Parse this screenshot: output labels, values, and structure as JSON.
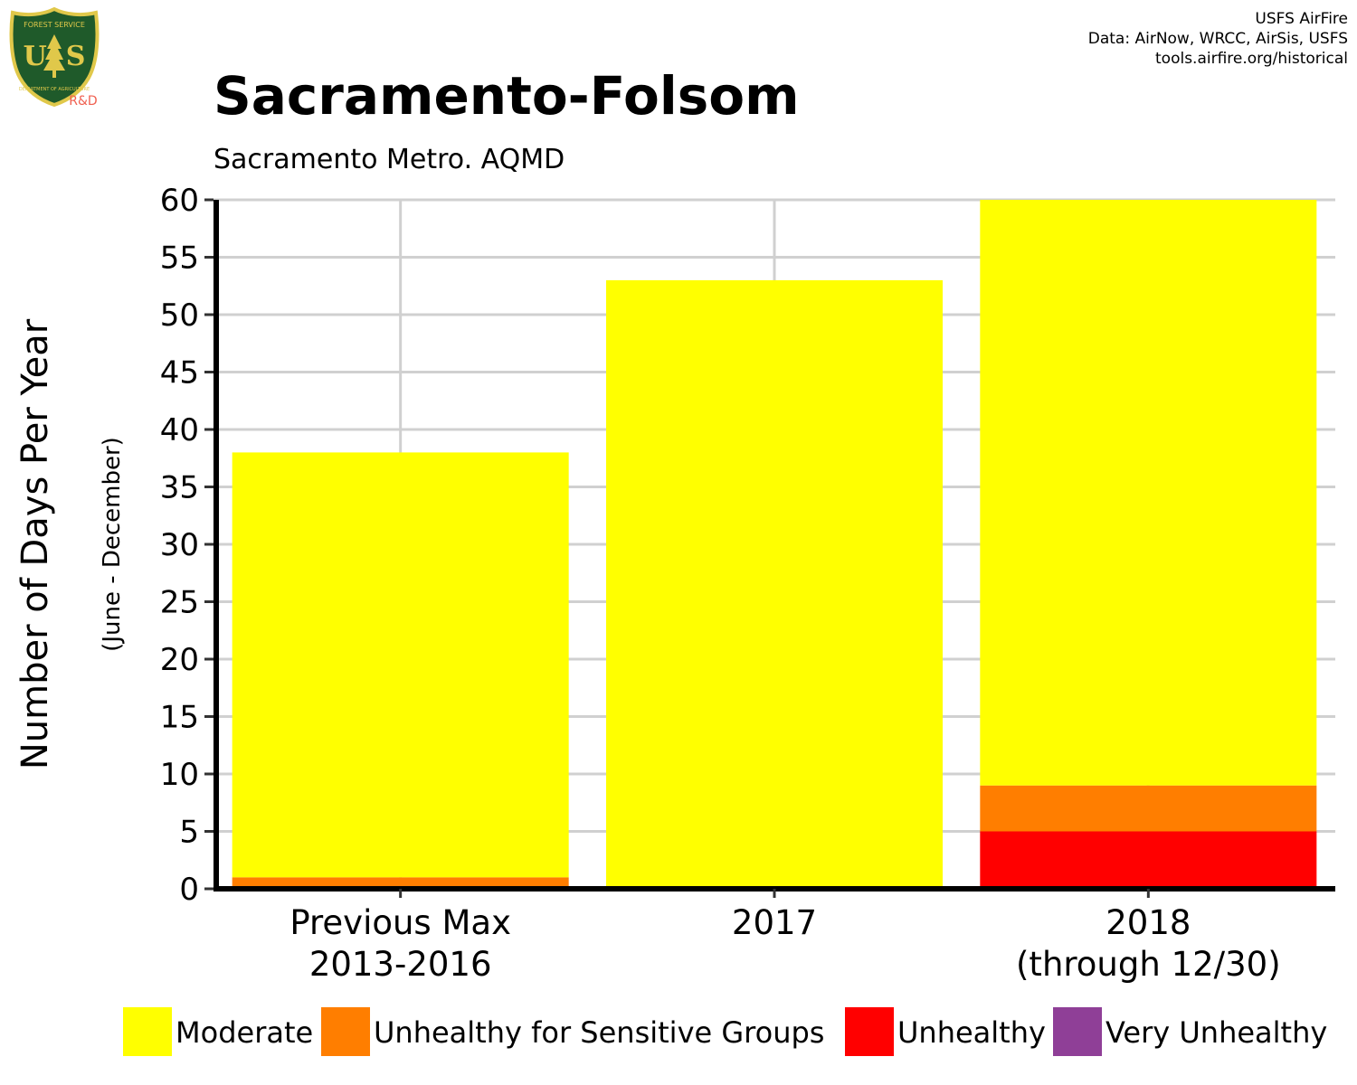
{
  "credits": {
    "line1": "USFS AirFire",
    "line2": "Data: AirNow, WRCC, AirSis, USFS",
    "line3": "tools.airfire.org/historical"
  },
  "logo": {
    "top_text": "FOREST SERVICE",
    "letters": "U  S",
    "bottom_text": "DEPARTMENT OF AGRICULTURE",
    "rd": "R&D",
    "colors": {
      "shield": "#1f5a2a",
      "border": "#e0c84a",
      "rd": "#f06050"
    }
  },
  "chart_data": {
    "type": "bar",
    "stacked": true,
    "title": "Sacramento-Folsom",
    "subtitle": "Sacramento Metro. AQMD",
    "ylabel": "Number of Days Per Year",
    "ylabel2": "(June - December)",
    "ylim": [
      0,
      60
    ],
    "yticks": [
      0,
      5,
      10,
      15,
      20,
      25,
      30,
      35,
      40,
      45,
      50,
      55,
      60
    ],
    "grid": true,
    "categories": [
      [
        "Previous Max",
        "2013-2016"
      ],
      [
        "2017"
      ],
      [
        "2018",
        "(through 12/30)"
      ]
    ],
    "series": [
      {
        "name": "Moderate",
        "color": "#FFFF00",
        "values": [
          37,
          53,
          51
        ]
      },
      {
        "name": "Unhealthy for Sensitive Groups",
        "color": "#FF7E00",
        "values": [
          1,
          0,
          4
        ]
      },
      {
        "name": "Unhealthy",
        "color": "#FF0000",
        "values": [
          0,
          0,
          5
        ]
      },
      {
        "name": "Very Unhealthy",
        "color": "#8F3F97",
        "values": [
          0,
          0,
          0
        ]
      }
    ],
    "stack_order_bottom_to_top": [
      "Very Unhealthy",
      "Unhealthy",
      "Unhealthy for Sensitive Groups",
      "Moderate"
    ],
    "legend_position": "bottom"
  }
}
